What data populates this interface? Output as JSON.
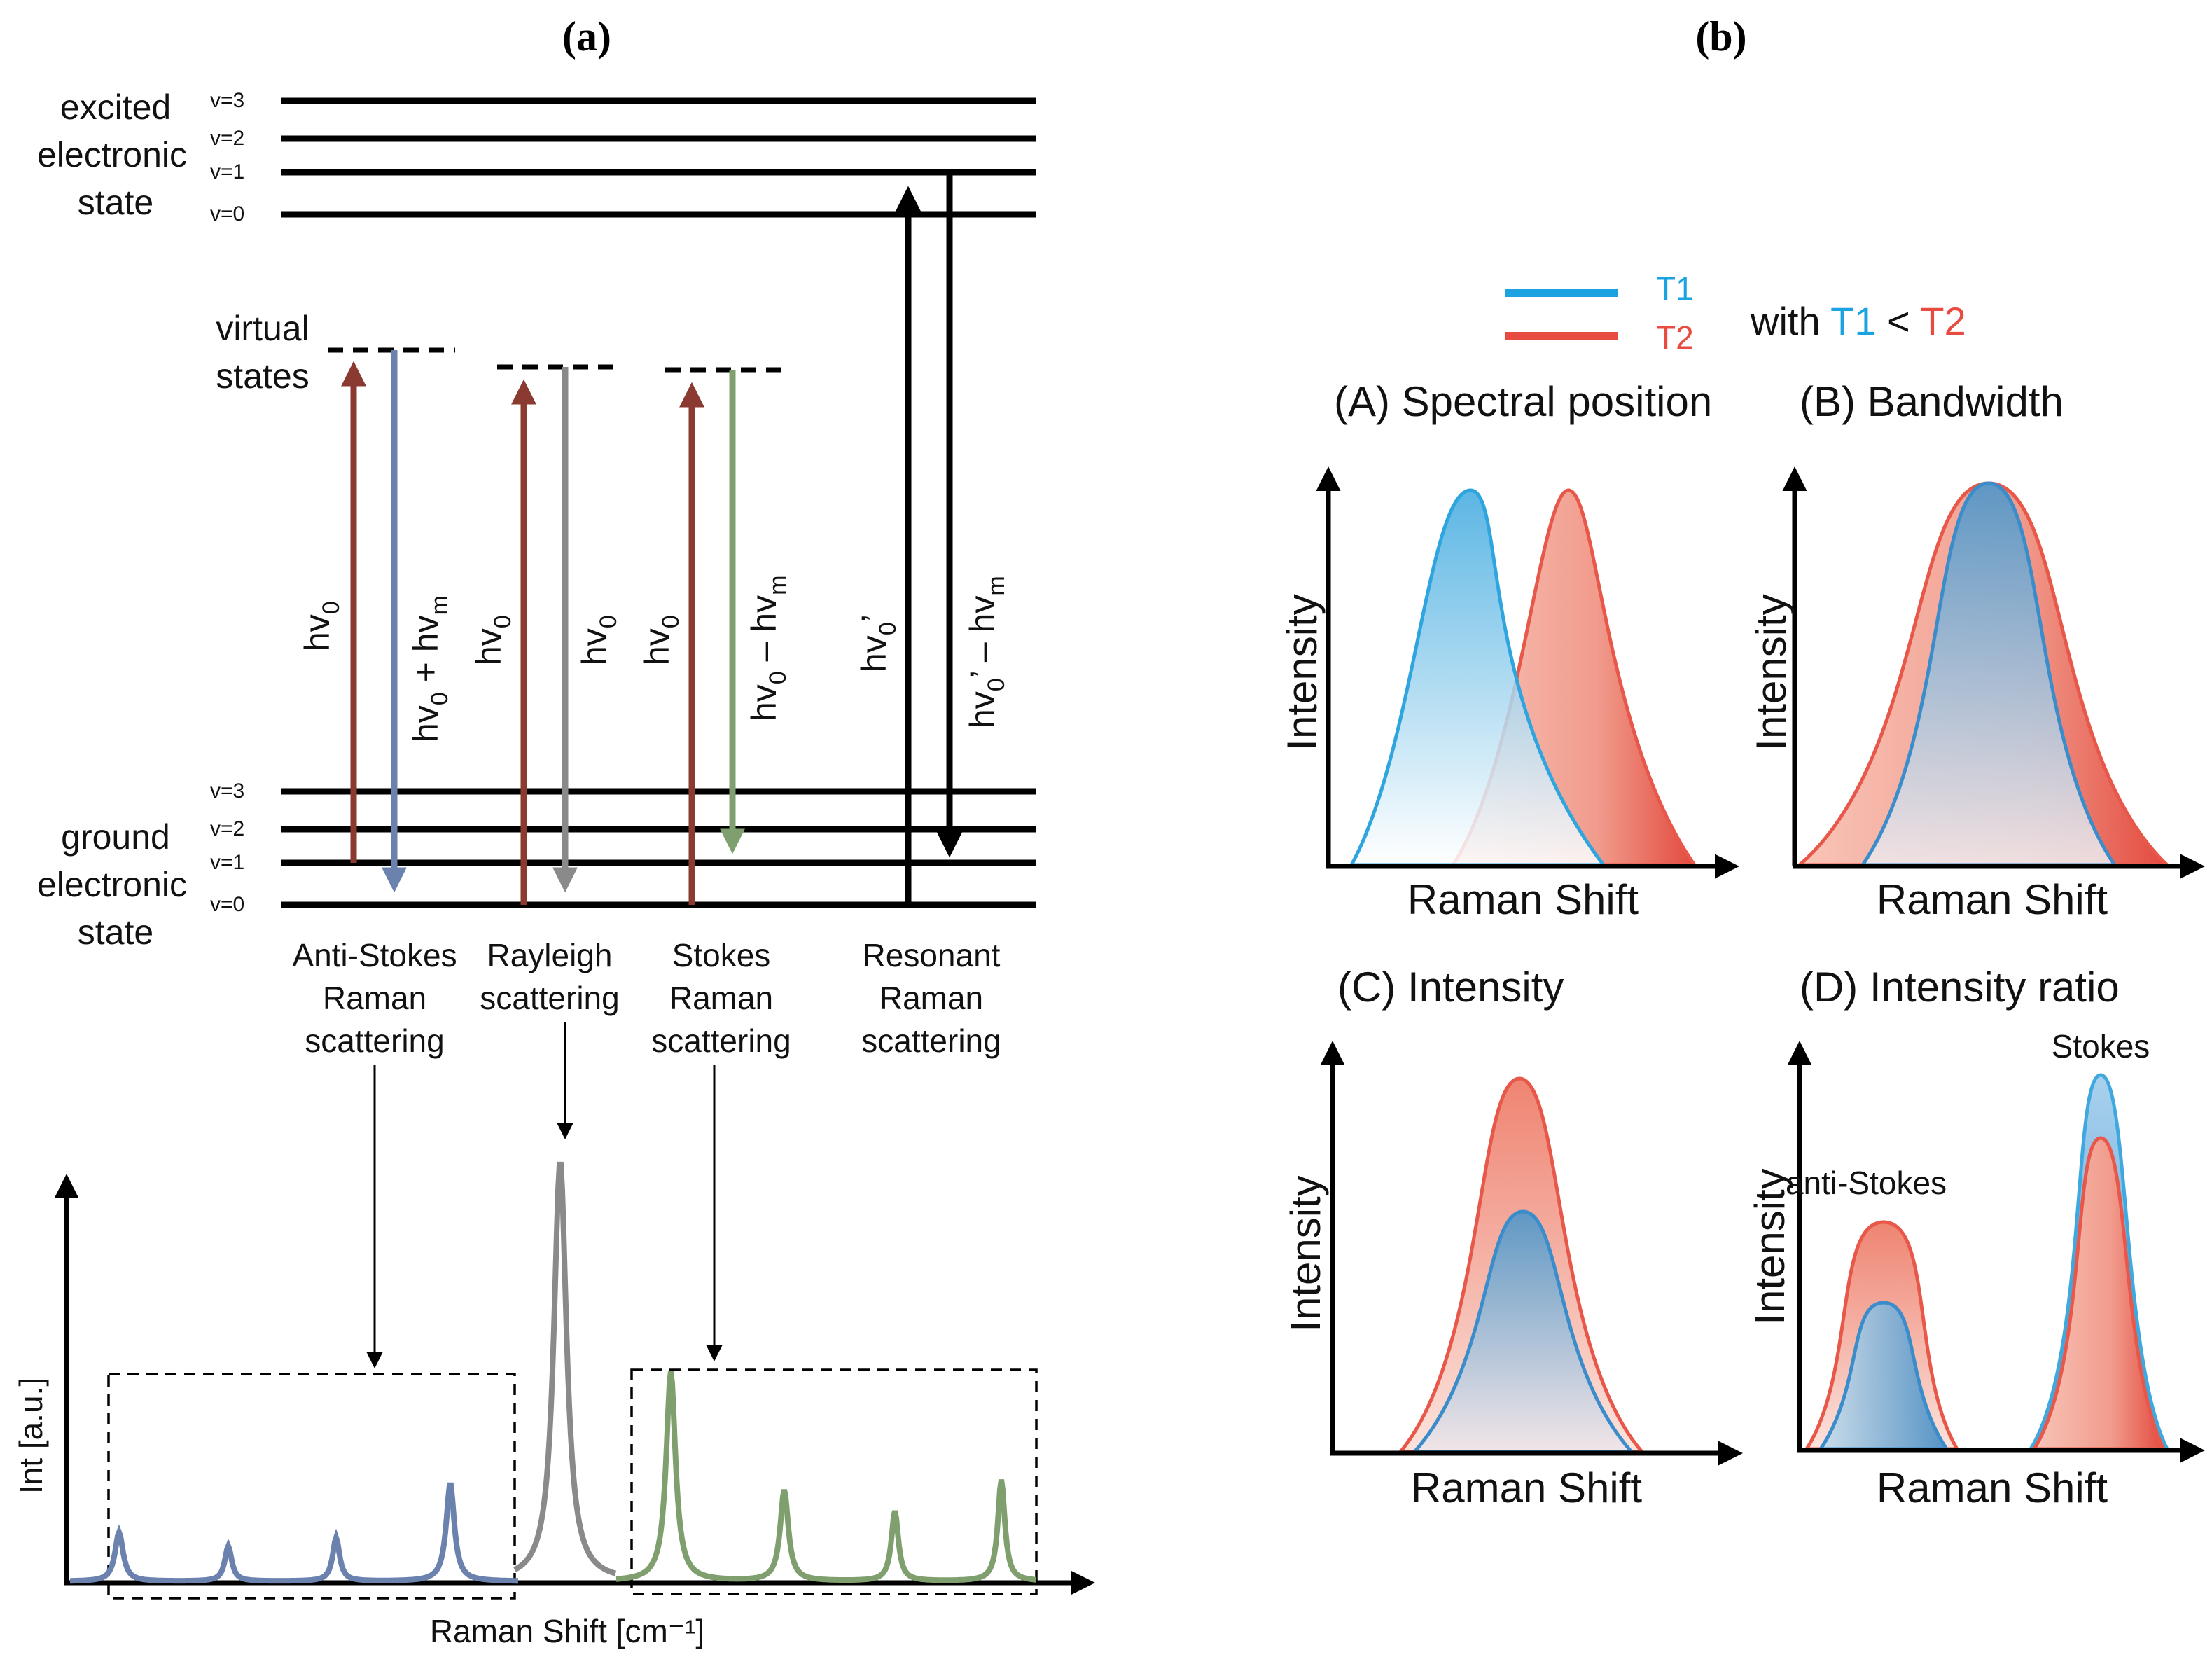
{
  "panel_a": {
    "label": "(a)",
    "excited_state": [
      "excited",
      "electronic",
      "state"
    ],
    "ground_state": [
      "ground",
      "electronic",
      "state"
    ],
    "virtual_states": [
      "virtual",
      "states"
    ],
    "levels": {
      "v3": "v=3",
      "v2": "v=2",
      "v1": "v=1",
      "v0": "v=0"
    },
    "transitions": {
      "hv": "hv",
      "sub0": "0",
      "subm": "m",
      "prime": "’",
      "plus": " + hv",
      "minus": " – hv"
    },
    "scattering_labels": {
      "anti_stokes": [
        "Anti-Stokes",
        "Raman",
        "scattering"
      ],
      "rayleigh": [
        "Rayleigh",
        "scattering"
      ],
      "stokes": [
        "Stokes",
        "Raman",
        "scattering"
      ],
      "resonant": [
        "Resonant",
        "Raman",
        "scattering"
      ]
    },
    "spectrum": {
      "ylabel": "Int [a.u.]",
      "xlabel": "Raman Shift  [cm⁻¹]"
    },
    "colors": {
      "excitation": "#8b3a32",
      "anti_stokes": "#6a82ad",
      "rayleigh": "#8a8a8a",
      "stokes": "#7fa06e"
    }
  },
  "panel_b": {
    "label": "(b)",
    "legend": {
      "t1": "T1",
      "t2": "T2",
      "with": "with ",
      "lt": " < "
    },
    "colors": {
      "t1": "#1aa3e0",
      "t2": "#e84c40"
    },
    "plots": {
      "A": {
        "title": "(A) Spectral position",
        "xlabel": "Raman Shift",
        "ylabel": "Intensity"
      },
      "B": {
        "title": "(B) Bandwidth",
        "xlabel": "Raman Shift",
        "ylabel": "Intensity"
      },
      "C": {
        "title": "(C) Intensity",
        "xlabel": "Raman Shift",
        "ylabel": "Intensity"
      },
      "D": {
        "title": "(D) Intensity ratio",
        "xlabel": "Raman Shift",
        "ylabel": "Intensity",
        "anti_stokes": "anti-Stokes",
        "stokes": "Stokes"
      }
    }
  }
}
